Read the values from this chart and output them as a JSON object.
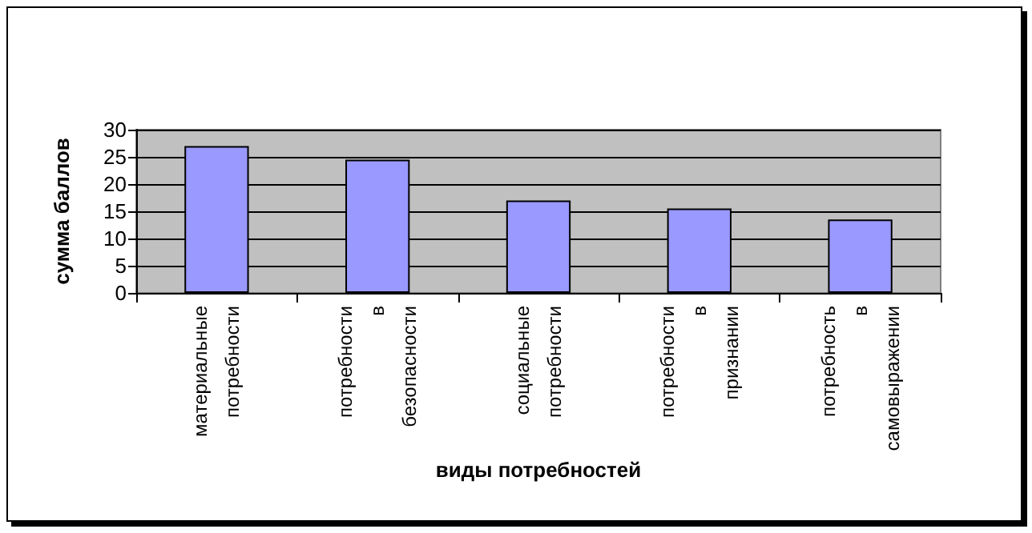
{
  "chart_data": {
    "type": "bar",
    "xlabel": "виды потребностей",
    "ylabel": "сумма баллов",
    "categories": [
      "материальные потребности",
      "потребности в безопасности",
      "социальные потребности",
      "потребности в признании",
      "потребность в самовыражении"
    ],
    "values": [
      27,
      24.5,
      17,
      15.5,
      13.5
    ],
    "color": "#9999ff",
    "ylim": [
      0,
      30
    ],
    "yticks": [
      0,
      5,
      10,
      15,
      20,
      25,
      30
    ],
    "grid": "y"
  }
}
